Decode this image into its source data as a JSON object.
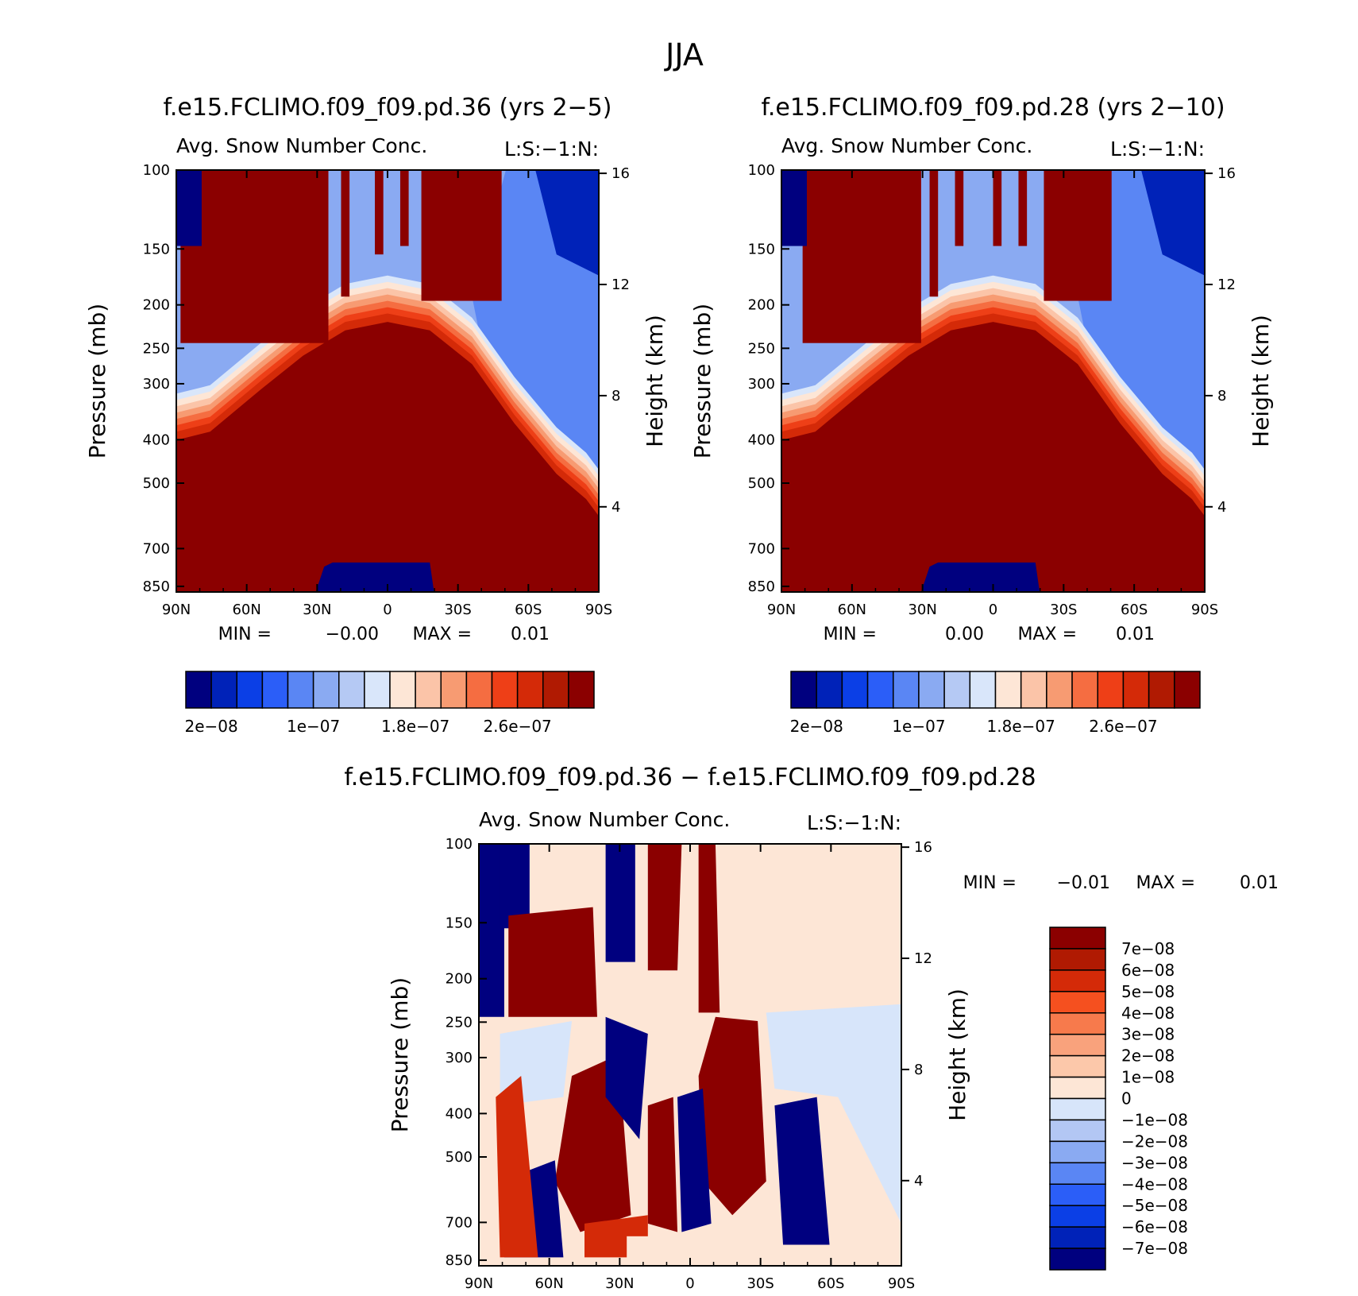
{
  "figure_title": "JJA",
  "chart_data": [
    {
      "type": "heatmap",
      "id": "case1",
      "title": "f.e15.FCLIMO.f09_f09.pd.36 (yrs 2-5)",
      "subtitle_left": "Avg. Snow Number Conc.",
      "subtitle_right": "L:S:-1:N:",
      "ylabel_left": "Pressure (mb)",
      "ylabel_right": "Height (km)",
      "x_ticks": [
        "90N",
        "60N",
        "30N",
        "0",
        "30S",
        "60S",
        "90S"
      ],
      "pressure_ticks": [
        "100",
        "150",
        "200",
        "250",
        "300",
        "400",
        "500",
        "700",
        "850"
      ],
      "height_ticks": [
        "16",
        "12",
        "8",
        "4"
      ],
      "min_label": "MIN =",
      "min_value": "-0.00",
      "max_label": "MAX =",
      "max_value": "0.01",
      "colorbar_colors": [
        "#00007f",
        "#0022b8",
        "#0b3fe6",
        "#2b5ef8",
        "#5a86f4",
        "#8aaaf2",
        "#b5c9f4",
        "#d9e6fa",
        "#fde6d6",
        "#fbc4a8",
        "#f79b72",
        "#f56d41",
        "#ee3f17",
        "#d42a08",
        "#b01a02",
        "#8b0000"
      ],
      "colorbar_labels": [
        "2e-08",
        "1e-07",
        "1.8e-07",
        "2.6e-07"
      ]
    },
    {
      "type": "heatmap",
      "id": "case2",
      "title": "f.e15.FCLIMO.f09_f09.pd.28 (yrs 2-10)",
      "subtitle_left": "Avg. Snow Number Conc.",
      "subtitle_right": "L:S:-1:N:",
      "ylabel_left": "Pressure (mb)",
      "ylabel_right": "Height (km)",
      "x_ticks": [
        "90N",
        "60N",
        "30N",
        "0",
        "30S",
        "60S",
        "90S"
      ],
      "pressure_ticks": [
        "100",
        "150",
        "200",
        "250",
        "300",
        "400",
        "500",
        "700",
        "850"
      ],
      "height_ticks": [
        "16",
        "12",
        "8",
        "4"
      ],
      "min_label": "MIN =",
      "min_value": "0.00",
      "max_label": "MAX =",
      "max_value": "0.01",
      "colorbar_colors": [
        "#00007f",
        "#0022b8",
        "#0b3fe6",
        "#2b5ef8",
        "#5a86f4",
        "#8aaaf2",
        "#b5c9f4",
        "#d9e6fa",
        "#fde6d6",
        "#fbc4a8",
        "#f79b72",
        "#f56d41",
        "#ee3f17",
        "#d42a08",
        "#b01a02",
        "#8b0000"
      ],
      "colorbar_labels": [
        "2e-08",
        "1e-07",
        "1.8e-07",
        "2.6e-07"
      ]
    },
    {
      "type": "heatmap",
      "id": "diff",
      "title": "f.e15.FCLIMO.f09_f09.pd.36 - f.e15.FCLIMO.f09_f09.pd.28",
      "subtitle_left": "Avg. Snow Number Conc.",
      "subtitle_right": "L:S:-1:N:",
      "ylabel_left": "Pressure (mb)",
      "ylabel_right": "Height (km)",
      "x_ticks": [
        "90N",
        "60N",
        "30N",
        "0",
        "30S",
        "60S",
        "90S"
      ],
      "pressure_ticks": [
        "100",
        "150",
        "200",
        "250",
        "300",
        "400",
        "500",
        "700",
        "850"
      ],
      "height_ticks": [
        "16",
        "12",
        "8",
        "4"
      ],
      "min_label": "MIN =",
      "min_value": "-0.01",
      "max_label": "MAX =",
      "max_value": "0.01",
      "colorbar_colors": [
        "#8b0000",
        "#b01a02",
        "#d42a08",
        "#f5501f",
        "#f77a4c",
        "#f9a27c",
        "#fcc8aa",
        "#fde6d6",
        "#d7e5fa",
        "#b3c7f4",
        "#8aaaf2",
        "#5a86f4",
        "#2b5ef8",
        "#0b3fe6",
        "#0022b8",
        "#00007f"
      ],
      "colorbar_labels": [
        "7e-08",
        "6e-08",
        "5e-08",
        "4e-08",
        "3e-08",
        "2e-08",
        "1e-08",
        "0",
        "-1e-08",
        "-2e-08",
        "-3e-08",
        "-4e-08",
        "-5e-08",
        "-6e-08",
        "-7e-08"
      ]
    }
  ]
}
